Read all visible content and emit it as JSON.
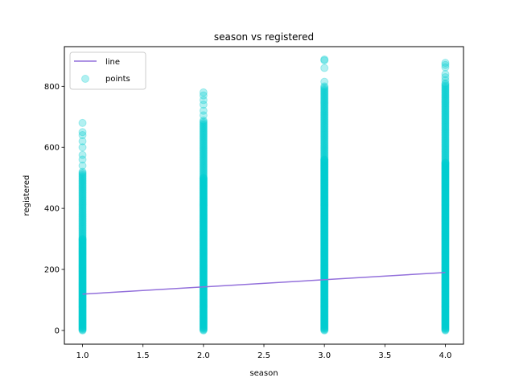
{
  "chart_data": {
    "type": "scatter",
    "title": "season vs registered",
    "xlabel": "season",
    "ylabel": "registered",
    "xlim": [
      0.85,
      4.15
    ],
    "ylim": [
      -45,
      930
    ],
    "xticks": [
      1.0,
      1.5,
      2.0,
      2.5,
      3.0,
      3.5,
      4.0
    ],
    "xtick_labels": [
      "1.0",
      "1.5",
      "2.0",
      "2.5",
      "3.0",
      "3.5",
      "4.0"
    ],
    "yticks": [
      0,
      200,
      400,
      600,
      800
    ],
    "ytick_labels": [
      "0",
      "200",
      "400",
      "600",
      "800"
    ],
    "grid": false,
    "legend": {
      "placement": "top-left",
      "entries": [
        {
          "label": "line",
          "kind": "line",
          "color": "#9370db"
        },
        {
          "label": "points",
          "kind": "marker",
          "color": "#00ced1"
        }
      ]
    },
    "series": [
      {
        "name": "points",
        "kind": "scatter",
        "color": "#00ced1",
        "alpha": 0.3,
        "groups": [
          {
            "x": 1.0,
            "y_min": 0,
            "y_dense_max": 300,
            "y_max": 520,
            "outliers": [
              540,
              560,
              575,
              600,
              620,
              640,
              650,
              680
            ]
          },
          {
            "x": 2.0,
            "y_min": 0,
            "y_dense_max": 500,
            "y_max": 690,
            "outliers": [
              705,
              720,
              740,
              755,
              770,
              780
            ]
          },
          {
            "x": 3.0,
            "y_min": 0,
            "y_dense_max": 560,
            "y_max": 800,
            "outliers": [
              815,
              860,
              885,
              888
            ]
          },
          {
            "x": 4.0,
            "y_min": 0,
            "y_dense_max": 550,
            "y_max": 810,
            "outliers": [
              820,
              830,
              840,
              862,
              870,
              877
            ]
          }
        ]
      },
      {
        "name": "line",
        "kind": "line",
        "color": "#9370db",
        "x": [
          1.0,
          4.0
        ],
        "y": [
          119,
          190
        ]
      }
    ]
  }
}
